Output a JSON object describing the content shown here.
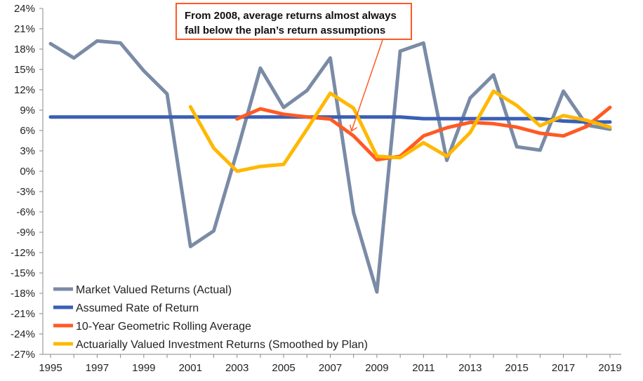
{
  "chart_data": {
    "type": "line",
    "title": "",
    "xlabel": "",
    "ylabel": "",
    "x": [
      1995,
      1996,
      1997,
      1998,
      1999,
      2000,
      2001,
      2002,
      2003,
      2004,
      2005,
      2006,
      2007,
      2008,
      2009,
      2010,
      2011,
      2012,
      2013,
      2014,
      2015,
      2016,
      2017,
      2018,
      2019
    ],
    "x_tick_labels": [
      "1995",
      "1997",
      "1999",
      "2001",
      "2003",
      "2005",
      "2007",
      "2009",
      "2011",
      "2013",
      "2015",
      "2017",
      "2019"
    ],
    "ylim": [
      -27,
      24
    ],
    "y_tick_labels": [
      "24%",
      "21%",
      "18%",
      "15%",
      "12%",
      "9%",
      "6%",
      "3%",
      "0%",
      "-3%",
      "-6%",
      "-9%",
      "-12%",
      "-15%",
      "-18%",
      "-21%",
      "-24%",
      "-27%"
    ],
    "grid": false,
    "legend_position": "bottom-left",
    "series": [
      {
        "name": "Market Valued Returns (Actual)",
        "color": "#7a8ba6",
        "values": [
          18.8,
          16.7,
          19.2,
          18.9,
          14.8,
          11.4,
          -11.1,
          -8.8,
          2.9,
          15.2,
          9.4,
          11.9,
          16.7,
          -6.1,
          -17.8,
          17.7,
          18.9,
          1.6,
          10.8,
          14.2,
          3.6,
          3.1,
          11.8,
          6.8,
          6.2
        ]
      },
      {
        "name": "Assumed Rate of Return",
        "color": "#3a5fb5",
        "values": [
          8.0,
          8.0,
          8.0,
          8.0,
          8.0,
          8.0,
          8.0,
          8.0,
          8.0,
          8.0,
          8.0,
          8.0,
          8.0,
          8.0,
          8.0,
          8.0,
          7.75,
          7.75,
          7.75,
          7.75,
          7.75,
          7.75,
          7.4,
          7.25,
          7.25
        ]
      },
      {
        "name": "10-Year Geometric Rolling Average",
        "color": "#ff5a24",
        "values": [
          null,
          null,
          null,
          null,
          null,
          null,
          null,
          null,
          7.7,
          9.2,
          8.4,
          8.0,
          7.7,
          5.2,
          1.7,
          2.2,
          5.2,
          6.4,
          7.2,
          7.0,
          6.5,
          5.6,
          5.2,
          6.6,
          9.4
        ]
      },
      {
        "name": "Actuarially Valued Investment Returns (Smoothed by Plan)",
        "color": "#ffb800",
        "values": [
          null,
          null,
          null,
          null,
          null,
          null,
          9.5,
          3.4,
          0.0,
          0.7,
          1.0,
          6.2,
          11.5,
          9.3,
          2.2,
          2.0,
          4.2,
          2.2,
          5.7,
          11.8,
          9.7,
          6.7,
          8.2,
          7.5,
          6.5
        ]
      }
    ],
    "annotation": {
      "line1": "From 2008, average returns almost always",
      "line2": "fall below the plan’s return assumptions",
      "points_to_year": 2008,
      "color": "#ff5a24"
    }
  }
}
